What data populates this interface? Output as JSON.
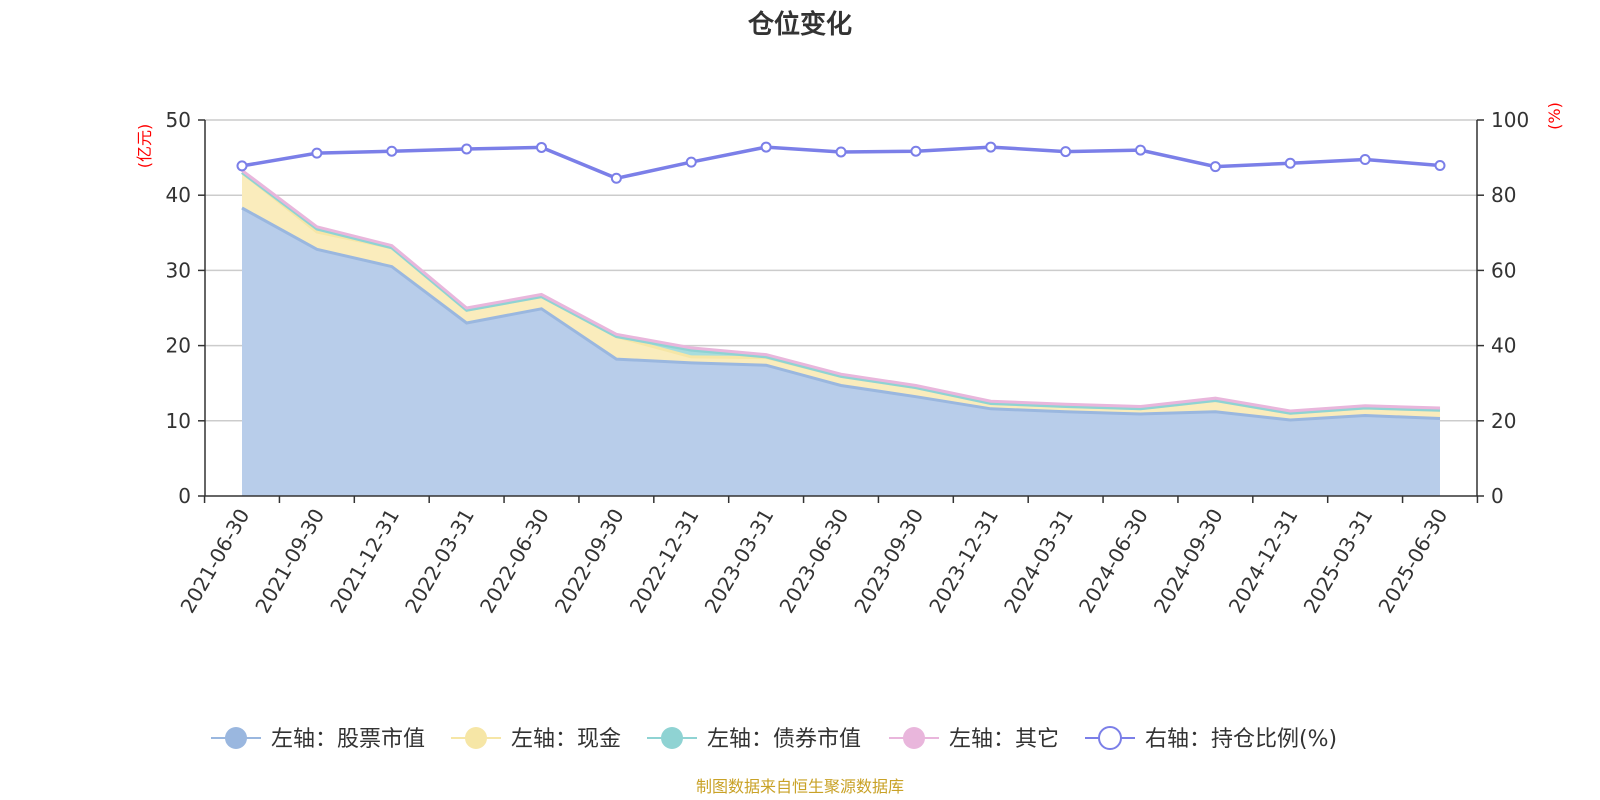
{
  "chart_data": {
    "type": "area",
    "title": "仓位变化",
    "left_axis": {
      "unit": "(亿元)",
      "ylim": [
        0,
        50
      ],
      "ticks": [
        0,
        10,
        20,
        30,
        40,
        50
      ]
    },
    "right_axis": {
      "unit": "(%)",
      "ylim": [
        0,
        100
      ],
      "ticks": [
        0,
        20,
        40,
        60,
        80,
        100
      ]
    },
    "categories": [
      "2021-06-30",
      "2021-09-30",
      "2021-12-31",
      "2022-03-31",
      "2022-06-30",
      "2022-09-30",
      "2022-12-31",
      "2023-03-31",
      "2023-06-30",
      "2023-09-30",
      "2023-12-31",
      "2024-03-31",
      "2024-06-30",
      "2024-09-30",
      "2024-12-31",
      "2025-03-31",
      "2025-06-30"
    ],
    "stacked_series": [
      {
        "name": "左轴：股票市值",
        "color": "#9ab7df",
        "fill": "#b8cdea",
        "values": [
          38.3,
          32.8,
          30.5,
          23.0,
          24.9,
          18.2,
          17.7,
          17.4,
          14.7,
          13.2,
          11.6,
          11.2,
          10.9,
          11.2,
          10.1,
          10.7,
          10.3
        ]
      },
      {
        "name": "左轴：现金",
        "color": "#f6e6a6",
        "fill": "#faecbc",
        "values": [
          4.7,
          2.3,
          2.5,
          1.7,
          1.6,
          3.0,
          0.8,
          1.0,
          1.2,
          1.2,
          0.7,
          0.7,
          0.7,
          1.5,
          0.9,
          1.0,
          1.1
        ]
      },
      {
        "name": "左轴：债券市值",
        "color": "#8fd3d3",
        "fill": "#a7dddd",
        "values": [
          0.0,
          0.4,
          0.0,
          0.0,
          0.0,
          0.0,
          0.9,
          0.1,
          0.0,
          0.0,
          0.0,
          0.0,
          0.0,
          0.0,
          0.0,
          0.0,
          0.0
        ]
      },
      {
        "name": "左轴：其它",
        "color": "#e9b6dc",
        "fill": "#efc6e3",
        "values": [
          0.3,
          0.3,
          0.3,
          0.3,
          0.3,
          0.3,
          0.3,
          0.3,
          0.3,
          0.3,
          0.3,
          0.3,
          0.3,
          0.3,
          0.3,
          0.3,
          0.3
        ]
      }
    ],
    "line_series": {
      "name": "右轴：持仓比例(%)",
      "color": "#7b7fe8",
      "values": [
        87.8,
        91.2,
        91.7,
        92.3,
        92.7,
        84.5,
        88.8,
        92.8,
        91.5,
        91.7,
        92.8,
        91.6,
        92.0,
        87.6,
        88.5,
        89.5,
        87.9
      ]
    },
    "legend_position": "bottom",
    "grid": true
  },
  "source_note": "制图数据来自恒生聚源数据库"
}
